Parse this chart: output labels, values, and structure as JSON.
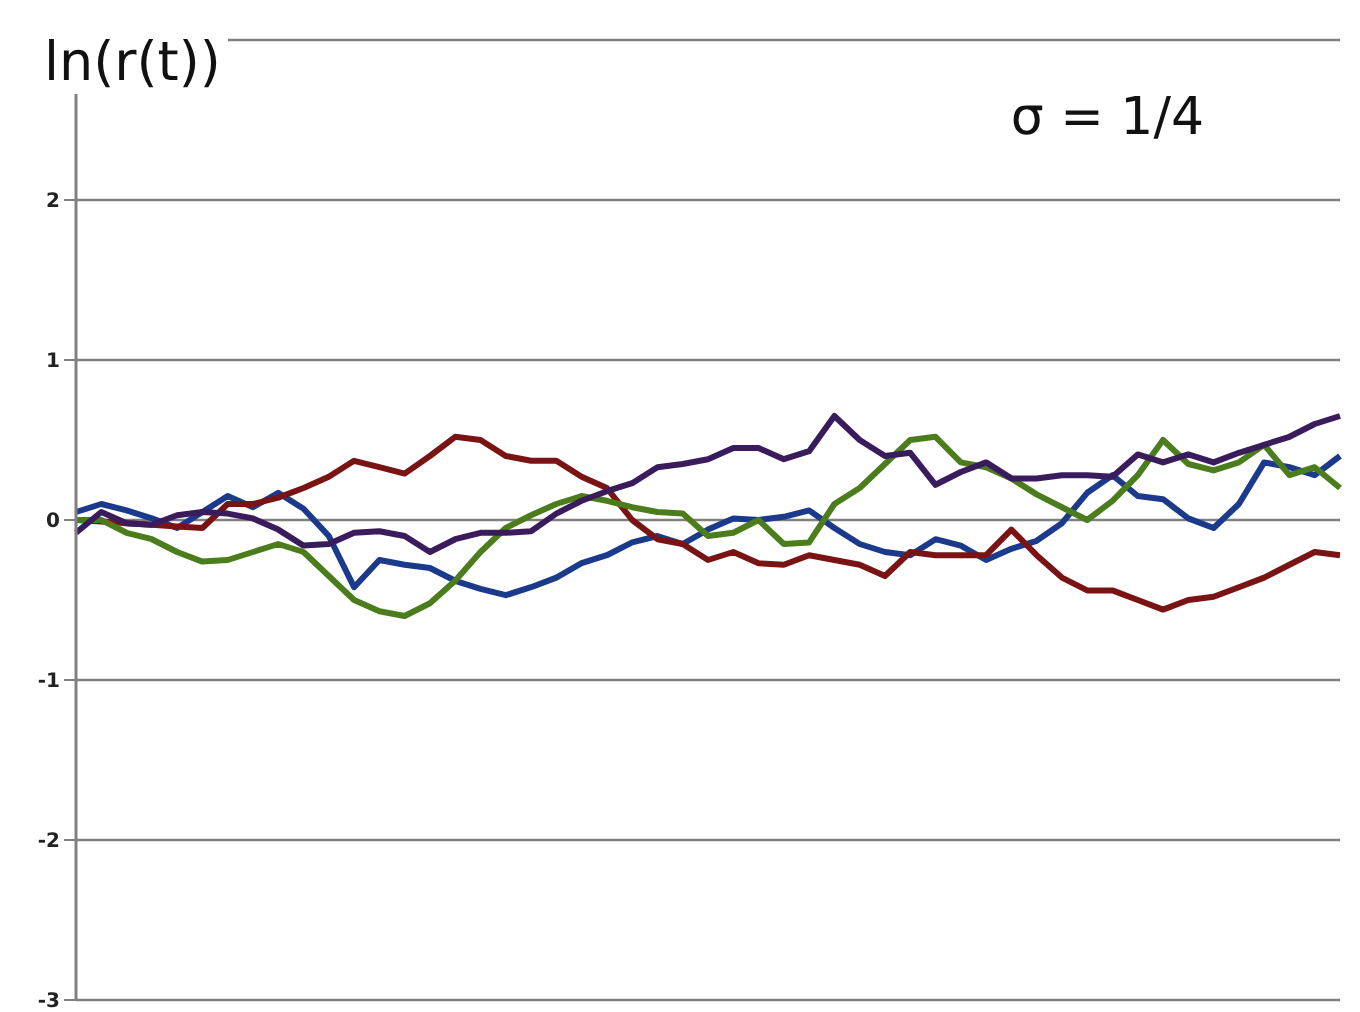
{
  "chart_data": {
    "type": "line",
    "ylabel": "ln(r(t))",
    "annotations": [
      "σ = 1/4"
    ],
    "categories": [
      null,
      null,
      null,
      null,
      null,
      null,
      null,
      null,
      null,
      null,
      null,
      null,
      null,
      null,
      null,
      null,
      null,
      null,
      null,
      null,
      null,
      null,
      null,
      null,
      null,
      null,
      null,
      null,
      null,
      null,
      null,
      null,
      null,
      null,
      null,
      null,
      null,
      null,
      null,
      null,
      null,
      null,
      null,
      null,
      null,
      null,
      null,
      null,
      null,
      null,
      null
    ],
    "ylim": [
      -3,
      3
    ],
    "yticks": [
      -3,
      -2,
      -1,
      0,
      1,
      2,
      {
        "value": 3,
        "label": null
      }
    ],
    "grid": "y",
    "tick_labels": "y",
    "marker": "none",
    "line_style": "solid",
    "series": [
      {
        "color": "#1b3a8c",
        "values": [
          0.05,
          0.1,
          0.06,
          0.01,
          -0.05,
          0.05,
          0.15,
          0.08,
          0.17,
          0.07,
          -0.1,
          -0.42,
          -0.25,
          -0.28,
          -0.3,
          -0.38,
          -0.43,
          -0.47,
          -0.42,
          -0.36,
          -0.27,
          -0.22,
          -0.14,
          -0.1,
          -0.15,
          -0.06,
          0.01,
          0,
          0.02,
          0.06,
          -0.05,
          -0.15,
          -0.2,
          -0.22,
          -0.12,
          -0.16,
          -0.25,
          -0.18,
          -0.13,
          -0.02,
          0.17,
          0.28,
          0.15,
          0.13,
          0.01,
          -0.05,
          0.1,
          0.36,
          0.33,
          0.28,
          0.4
        ]
      },
      {
        "color": "#7a1414",
        "values": [
          0,
          -0.01,
          -0.02,
          -0.03,
          -0.04,
          -0.05,
          0.1,
          0.1,
          0.14,
          0.2,
          0.27,
          0.37,
          0.33,
          0.29,
          0.4,
          0.52,
          0.5,
          0.4,
          0.37,
          0.37,
          0.27,
          0.2,
          0,
          -0.12,
          -0.15,
          -0.25,
          -0.2,
          -0.27,
          -0.28,
          -0.22,
          -0.25,
          -0.28,
          -0.35,
          -0.2,
          -0.22,
          -0.22,
          -0.22,
          -0.06,
          -0.22,
          -0.36,
          -0.44,
          -0.44,
          -0.5,
          -0.56,
          -0.5,
          -0.48,
          -0.42,
          -0.36,
          -0.28,
          -0.2,
          -0.22
        ]
      },
      {
        "color": "#4c7d1c",
        "values": [
          0,
          0,
          -0.08,
          -0.12,
          -0.2,
          -0.26,
          -0.25,
          -0.2,
          -0.15,
          -0.2,
          -0.35,
          -0.5,
          -0.57,
          -0.6,
          -0.52,
          -0.38,
          -0.2,
          -0.05,
          0.03,
          0.1,
          0.15,
          0.12,
          0.08,
          0.05,
          0.04,
          -0.1,
          -0.08,
          0,
          -0.15,
          -0.14,
          0.1,
          0.2,
          0.35,
          0.5,
          0.52,
          0.36,
          0.33,
          0.26,
          0.16,
          0.08,
          0,
          0.12,
          0.28,
          0.5,
          0.35,
          0.31,
          0.36,
          0.47,
          0.28,
          0.33,
          0.2
        ]
      },
      {
        "color": "#3a1c5c",
        "values": [
          -0.08,
          0.05,
          -0.02,
          -0.03,
          0.03,
          0.05,
          0.04,
          0.01,
          -0.06,
          -0.16,
          -0.15,
          -0.08,
          -0.07,
          -0.1,
          -0.2,
          -0.12,
          -0.08,
          -0.08,
          -0.07,
          0.04,
          0.12,
          0.18,
          0.23,
          0.33,
          0.35,
          0.38,
          0.45,
          0.45,
          0.38,
          0.43,
          0.65,
          0.5,
          0.4,
          0.42,
          0.22,
          0.3,
          0.36,
          0.26,
          0.26,
          0.28,
          0.28,
          0.27,
          0.41,
          0.36,
          0.41,
          0.36,
          0.42,
          0.47,
          0.52,
          0.6,
          0.65
        ]
      }
    ]
  }
}
